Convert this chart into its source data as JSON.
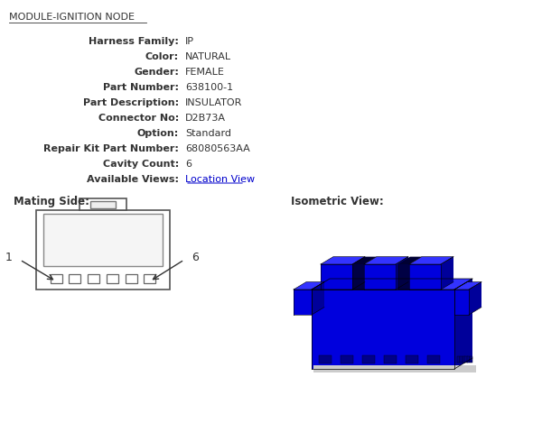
{
  "title": "MODULE-IGNITION NODE",
  "fields": [
    [
      "Harness Family:",
      "IP"
    ],
    [
      "Color:",
      "NATURAL"
    ],
    [
      "Gender:",
      "FEMALE"
    ],
    [
      "Part Number:",
      "638100-1"
    ],
    [
      "Part Description:",
      "INSULATOR"
    ],
    [
      "Connector No:",
      "D2B73A"
    ],
    [
      "Option:",
      "Standard"
    ],
    [
      "Repair Kit Part Number:",
      "68080563AA"
    ],
    [
      "Cavity Count:",
      "6"
    ],
    [
      "Available Views:",
      "Location View"
    ]
  ],
  "mating_label": "Mating Side:",
  "isometric_label": "Isometric View:",
  "text_color": "#333333",
  "blue_front": "#0000dd",
  "blue_top": "#3333ff",
  "blue_right": "#00009a",
  "blue_dark": "#000088",
  "title_underline": true,
  "link_text": "Location View",
  "link_color": "#0000cc"
}
